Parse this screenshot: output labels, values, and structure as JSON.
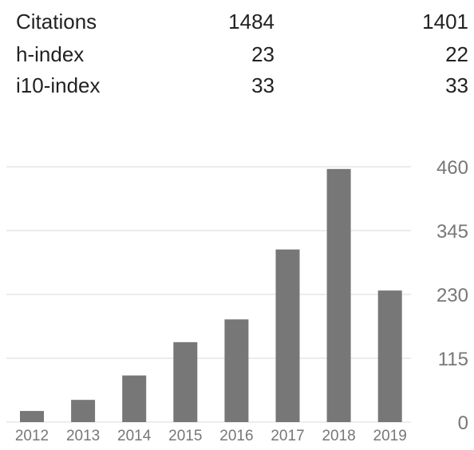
{
  "stats": {
    "rows": [
      {
        "label": "Citations",
        "all": "1484",
        "since": "1401"
      },
      {
        "label": "h-index",
        "all": "23",
        "since": "22"
      },
      {
        "label": "i10-index",
        "all": "33",
        "since": "33"
      }
    ]
  },
  "chart_data": {
    "type": "bar",
    "categories": [
      "2012",
      "2013",
      "2014",
      "2015",
      "2016",
      "2017",
      "2018",
      "2019"
    ],
    "values": [
      20,
      40,
      84,
      144,
      185,
      311,
      456,
      237
    ],
    "ylim": [
      0,
      460
    ],
    "yticks": [
      0,
      115,
      230,
      345,
      460
    ],
    "grid": true,
    "bar_color": "#777777",
    "grid_color": "#e6e6e6",
    "title": "",
    "xlabel": "",
    "ylabel": ""
  }
}
